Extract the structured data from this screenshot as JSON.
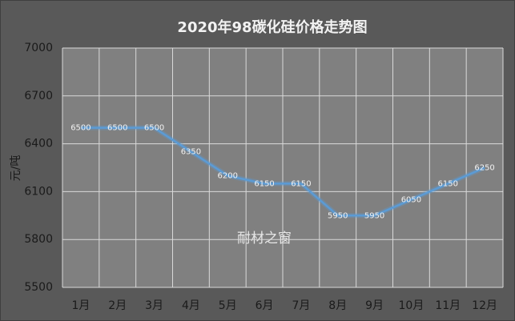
{
  "chart_data": {
    "type": "line",
    "title": "2020年98碳化硅价格走势图",
    "y_label": "元/吨",
    "annotation": "耐材之窗",
    "categories": [
      "1月",
      "2月",
      "3月",
      "4月",
      "5月",
      "6月",
      "7月",
      "8月",
      "9月",
      "10月",
      "11月",
      "12月"
    ],
    "values": [
      6500,
      6500,
      6500,
      6350,
      6200,
      6150,
      6150,
      5950,
      5950,
      6050,
      6150,
      6250
    ],
    "color": "#5b9bd5",
    "ylim": [
      5500,
      7000
    ],
    "yticks": [
      5500,
      5800,
      6100,
      6400,
      6700,
      7000
    ],
    "grid": true
  }
}
